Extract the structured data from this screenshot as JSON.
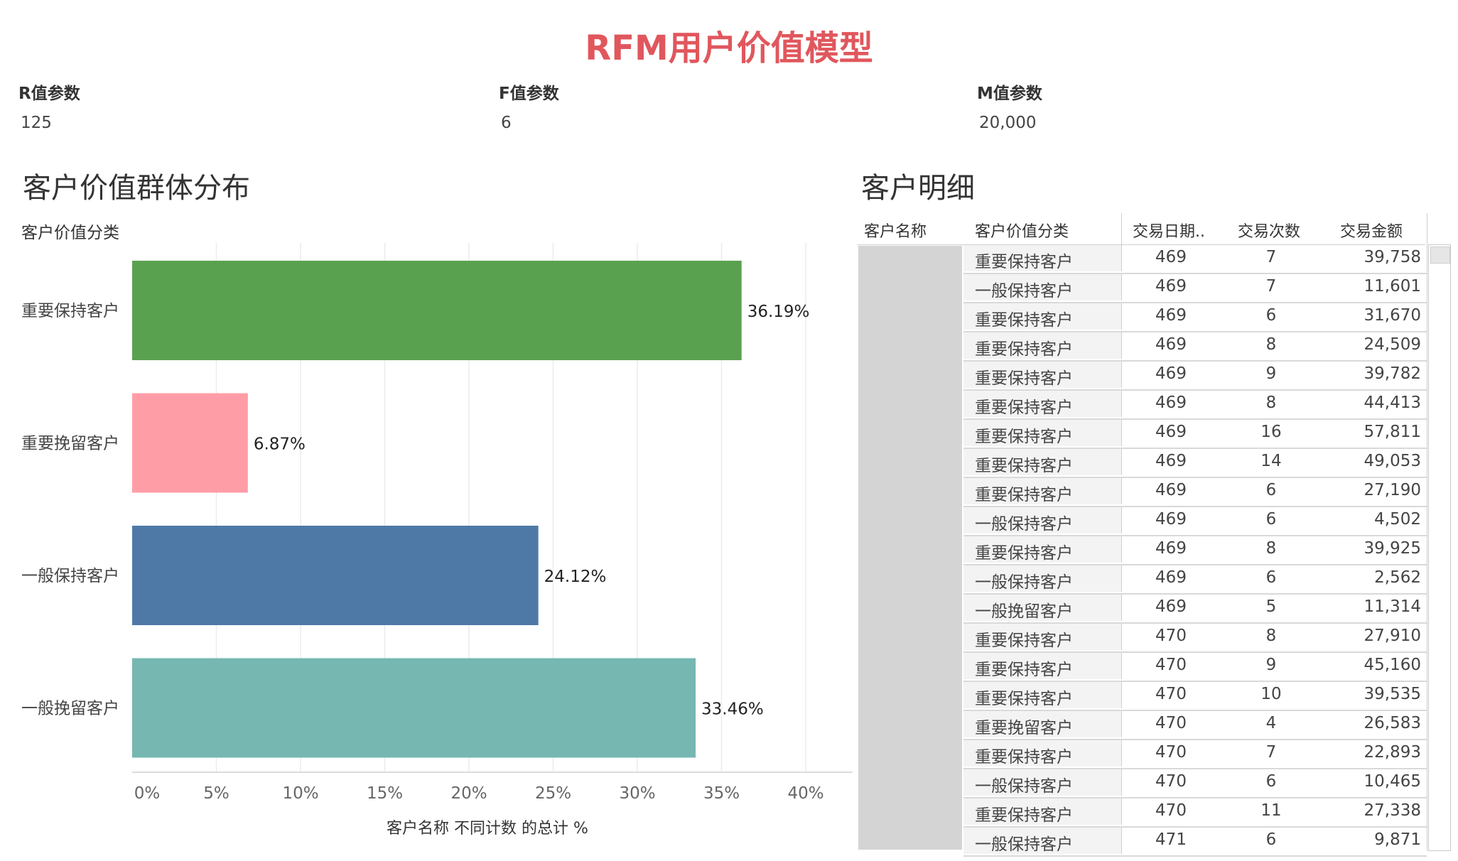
{
  "title": "RFM用户价值模型",
  "params": [
    {
      "label": "R值参数",
      "value": "125"
    },
    {
      "label": "F值参数",
      "value": "6"
    },
    {
      "label": "M值参数",
      "value": "20,000"
    }
  ],
  "left_section": {
    "title": "客户价值群体分布",
    "axis_group_title": "客户价值分类"
  },
  "chart_data": {
    "type": "bar",
    "orientation": "horizontal",
    "categories": [
      "重要保持客户",
      "重要挽留客户",
      "一般保持客户",
      "一般挽留客户"
    ],
    "values": [
      36.19,
      6.87,
      24.12,
      33.46
    ],
    "data_labels": [
      "36.19%",
      "6.87%",
      "24.12%",
      "33.46%"
    ],
    "colors": [
      "#59a14f",
      "#ff9da7",
      "#4e79a7",
      "#76b7b2"
    ],
    "xticks": [
      0,
      5,
      10,
      15,
      20,
      25,
      30,
      35,
      40
    ],
    "xtick_labels": [
      "0%",
      "5%",
      "10%",
      "15%",
      "20%",
      "25%",
      "30%",
      "35%",
      "40%"
    ],
    "xlim": [
      0,
      40
    ],
    "xlabel": "客户名称 不同计数 的总计 %",
    "grid": true
  },
  "right_section": {
    "title": "客户明细",
    "columns": [
      "客户名称",
      "客户价值分类",
      "交易日期..",
      "交易次数",
      "交易金额"
    ],
    "rows": [
      {
        "category": "重要保持客户",
        "date": "469",
        "count": "7",
        "amount": "39,758"
      },
      {
        "category": "一般保持客户",
        "date": "469",
        "count": "7",
        "amount": "11,601"
      },
      {
        "category": "重要保持客户",
        "date": "469",
        "count": "6",
        "amount": "31,670"
      },
      {
        "category": "重要保持客户",
        "date": "469",
        "count": "8",
        "amount": "24,509"
      },
      {
        "category": "重要保持客户",
        "date": "469",
        "count": "9",
        "amount": "39,782"
      },
      {
        "category": "重要保持客户",
        "date": "469",
        "count": "8",
        "amount": "44,413"
      },
      {
        "category": "重要保持客户",
        "date": "469",
        "count": "16",
        "amount": "57,811"
      },
      {
        "category": "重要保持客户",
        "date": "469",
        "count": "14",
        "amount": "49,053"
      },
      {
        "category": "重要保持客户",
        "date": "469",
        "count": "6",
        "amount": "27,190"
      },
      {
        "category": "一般保持客户",
        "date": "469",
        "count": "6",
        "amount": "4,502"
      },
      {
        "category": "重要保持客户",
        "date": "469",
        "count": "8",
        "amount": "39,925"
      },
      {
        "category": "一般保持客户",
        "date": "469",
        "count": "6",
        "amount": "2,562"
      },
      {
        "category": "一般挽留客户",
        "date": "469",
        "count": "5",
        "amount": "11,314"
      },
      {
        "category": "重要保持客户",
        "date": "470",
        "count": "8",
        "amount": "27,910"
      },
      {
        "category": "重要保持客户",
        "date": "470",
        "count": "9",
        "amount": "45,160"
      },
      {
        "category": "重要保持客户",
        "date": "470",
        "count": "10",
        "amount": "39,535"
      },
      {
        "category": "重要挽留客户",
        "date": "470",
        "count": "4",
        "amount": "26,583"
      },
      {
        "category": "重要保持客户",
        "date": "470",
        "count": "7",
        "amount": "22,893"
      },
      {
        "category": "一般保持客户",
        "date": "470",
        "count": "6",
        "amount": "10,465"
      },
      {
        "category": "重要保持客户",
        "date": "470",
        "count": "11",
        "amount": "27,338"
      },
      {
        "category": "一般保持客户",
        "date": "471",
        "count": "6",
        "amount": "9,871"
      }
    ]
  }
}
